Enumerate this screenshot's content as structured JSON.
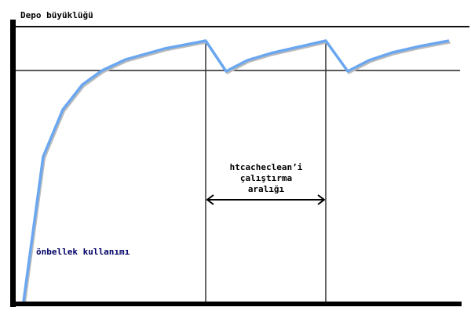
{
  "diagram": {
    "y_axis_label": "Depo büyüklüğü",
    "curve_label": "önbellek kullanımı",
    "interval_label_lines": [
      "htcacheclean’i",
      "çalıştırma",
      "aralığı"
    ],
    "curve_color": "#6aa7f0",
    "curve_label_color": "#000066"
  }
}
